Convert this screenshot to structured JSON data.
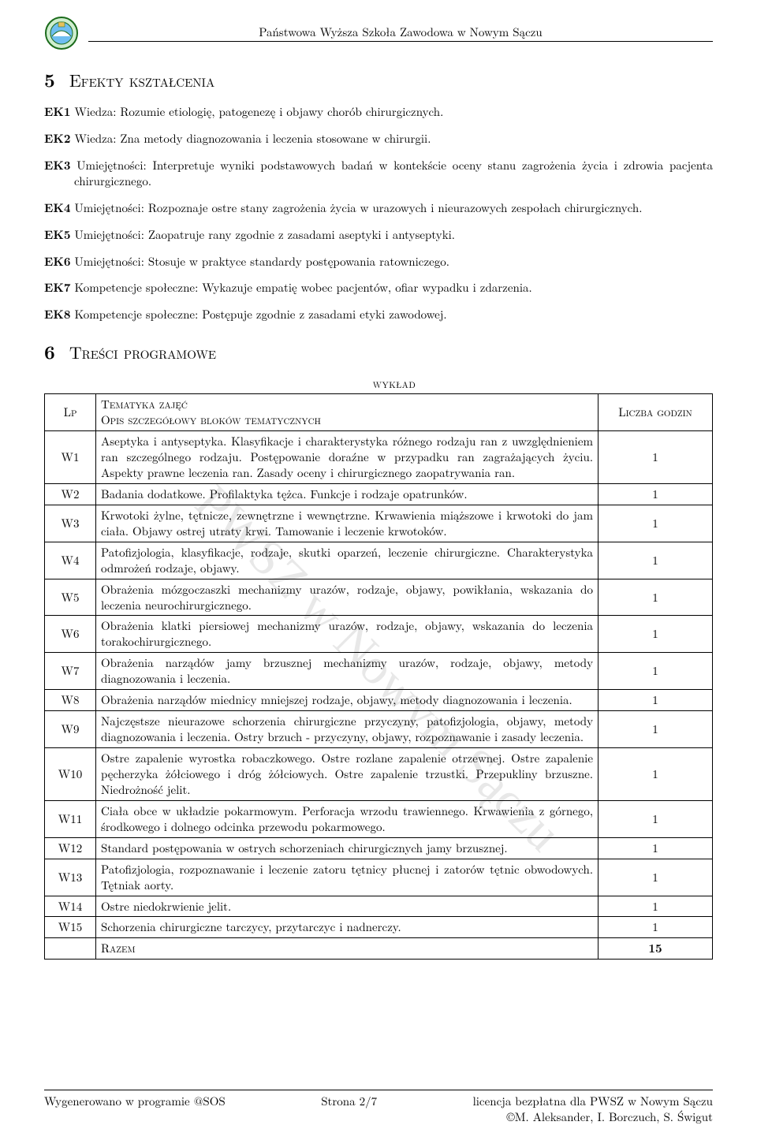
{
  "header": {
    "institution": "Państwowa Wyższa Szkoła Zawodowa w Nowym Sączu"
  },
  "section5": {
    "number": "5",
    "title": "Efekty kształcenia",
    "items": [
      {
        "code": "EK1",
        "text": "Wiedza: Rozumie etiologię, patogenezę i objawy chorób chirurgicznych."
      },
      {
        "code": "EK2",
        "text": "Wiedza: Zna metody diagnozowania i leczenia stosowane w chirurgii."
      },
      {
        "code": "EK3",
        "text": "Umiejętności: Interpretuje wyniki podstawowych badań w kontekście oceny stanu zagrożenia życia i zdrowia pacjenta chirurgicznego."
      },
      {
        "code": "EK4",
        "text": "Umiejętności: Rozpoznaje ostre stany zagrożenia życia w urazowych i nieurazowych zespołach chirurgicznych."
      },
      {
        "code": "EK5",
        "text": "Umiejętności: Zaopatruje rany zgodnie z zasadami aseptyki i antyseptyki."
      },
      {
        "code": "EK6",
        "text": "Umiejętności: Stosuje w praktyce standardy postępowania ratowniczego."
      },
      {
        "code": "EK7",
        "text": "Kompetencje społeczne: Wykazuje empatię wobec pacjentów, ofiar wypadku i zdarzenia."
      },
      {
        "code": "EK8",
        "text": "Kompetencje społeczne: Postępuje zgodnie z zasadami etyki zawodowej."
      }
    ]
  },
  "section6": {
    "number": "6",
    "title": "Treści programowe",
    "table_label": "wykład",
    "header_lp": "Lp",
    "header_topic_line1": "Tematyka zajęć",
    "header_topic_line2": "Opis szczegółowy bloków tematycznych",
    "header_hours": "Liczba godzin",
    "rows": [
      {
        "lp": "W1",
        "desc": "Aseptyka i antyseptyka. Klasyfikacje i charakterystyka różnego rodzaju ran z uwzględnieniem ran szczególnego rodzaju. Postępowanie doraźne w przypadku ran zagrażających życiu. Aspekty prawne leczenia ran. Zasady oceny i chirurgicznego zaopatrywania ran.",
        "hrs": "1"
      },
      {
        "lp": "W2",
        "desc": "Badania dodatkowe. Profilaktyka tężca. Funkcje i rodzaje opatrunków.",
        "hrs": "1"
      },
      {
        "lp": "W3",
        "desc": "Krwotoki żylne, tętnicze, zewnętrzne i wewnętrzne. Krwawienia miąższowe i krwotoki do jam ciała. Objawy ostrej utraty krwi. Tamowanie i leczenie krwotoków.",
        "hrs": "1"
      },
      {
        "lp": "W4",
        "desc": "Patofizjologia, klasyfikacje, rodzaje, skutki oparzeń, leczenie chirurgiczne. Charakterystyka odmrożeń rodzaje, objawy.",
        "hrs": "1"
      },
      {
        "lp": "W5",
        "desc": "Obrażenia mózgoczaszki mechanizmy urazów, rodzaje, objawy, powikłania, wskazania do leczenia neurochirurgicznego.",
        "hrs": "1"
      },
      {
        "lp": "W6",
        "desc": "Obrażenia klatki piersiowej mechanizmy urazów, rodzaje, objawy, wskazania do leczenia torakochirurgicznego.",
        "hrs": "1"
      },
      {
        "lp": "W7",
        "desc": "Obrażenia narządów jamy brzusznej mechanizmy urazów, rodzaje, objawy, metody diagnozowania i leczenia.",
        "hrs": "1"
      },
      {
        "lp": "W8",
        "desc": "Obrażenia narządów miednicy mniejszej rodzaje, objawy, metody diagnozowania i leczenia.",
        "hrs": "1"
      },
      {
        "lp": "W9",
        "desc": "Najczęstsze nieurazowe schorzenia chirurgiczne przyczyny, patofizjologia, objawy, metody diagnozowania i leczenia. Ostry brzuch - przyczyny, objawy, rozpoznawanie i zasady leczenia.",
        "hrs": "1"
      },
      {
        "lp": "W10",
        "desc": "Ostre zapalenie wyrostka robaczkowego. Ostre rozlane zapalenie otrzewnej. Ostre zapalenie pęcherzyka żółciowego i dróg żółciowych. Ostre zapalenie trzustki. Przepukliny brzuszne. Niedrożność jelit.",
        "hrs": "1"
      },
      {
        "lp": "W11",
        "desc": "Ciała obce w układzie pokarmowym. Perforacja wrzodu trawiennego. Krwawienia z górnego, środkowego i dolnego odcinka przewodu pokarmowego.",
        "hrs": "1"
      },
      {
        "lp": "W12",
        "desc": "Standard postępowania w ostrych schorzeniach chirurgicznych jamy brzusznej.",
        "hrs": "1"
      },
      {
        "lp": "W13",
        "desc": "Patofizjologia, rozpoznawanie i leczenie zatoru tętnicy płucnej i zatorów tętnic obwodowych. Tętniak aorty.",
        "hrs": "1"
      },
      {
        "lp": "W14",
        "desc": "Ostre niedokrwienie jelit.",
        "hrs": "1"
      },
      {
        "lp": "W15",
        "desc": "Schorzenia chirurgiczne tarczycy, przytarczyc i nadnerczy.",
        "hrs": "1"
      }
    ],
    "total_label": "Razem",
    "total_hours": "15"
  },
  "watermark": "PWSZ w Nowym Sączu",
  "footer": {
    "left": "Wygenerowano w programie @SOS",
    "center": "Strona 2/7",
    "right1": "licencja bezpłatna dla PWSZ w Nowym Sączu",
    "right2": "©M. Aleksander, I. Borczuch, S. Świgut"
  },
  "style": {
    "bg": "#ffffff",
    "fg": "#000000",
    "wm_color": "#e8e8e8",
    "font": "serif"
  }
}
